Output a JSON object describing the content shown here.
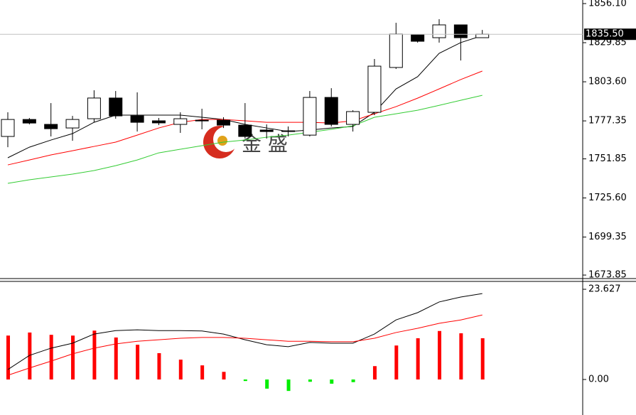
{
  "chart_data": [
    {
      "type": "candlestick",
      "watermark": "金 盛",
      "last_price": 1835.5,
      "last_price_label": "1835.50",
      "last_price_color": "#c0c0c0",
      "up_color": "#ffffff",
      "down_color": "#000000",
      "ylim": [
        1671.5,
        1858.5
      ],
      "yticks": [
        {
          "value": 1856.1,
          "label": "1856.10"
        },
        {
          "value": 1829.85,
          "label": "1829.85"
        },
        {
          "value": 1803.6,
          "label": "1803.60"
        },
        1777.35,
        {
          "value": 1751.85,
          "label": "1751.85"
        },
        {
          "value": 1725.6,
          "label": "1725.60"
        },
        1699.35,
        1673.85
      ],
      "open": [
        1766.9,
        1778.3,
        1775.0,
        1772.6,
        1778.8,
        1792.7,
        1780.7,
        1777.4,
        1775.0,
        1777.8,
        1777.8,
        1774.5,
        1771.2,
        1770.2,
        1767.8,
        1793.1,
        1775.0,
        1783.1,
        1813.2,
        1835.1,
        1833.2,
        1841.8,
        1833.2
      ],
      "high": [
        1783.1,
        1779.3,
        1789.3,
        1780.7,
        1797.9,
        1797.4,
        1796.5,
        1779.3,
        1783.1,
        1785.5,
        1779.8,
        1789.3,
        1775.0,
        1773.6,
        1797.4,
        1799.3,
        1784.5,
        1818.9,
        1843.2,
        1835.6,
        1845.6,
        1841.8,
        1838.4
      ],
      "low": [
        1759.7,
        1775.0,
        1766.9,
        1764.0,
        1776.4,
        1778.8,
        1770.2,
        1774.5,
        1769.3,
        1771.7,
        1772.6,
        1765.5,
        1765.5,
        1766.9,
        1766.9,
        1773.6,
        1770.2,
        1781.2,
        1812.2,
        1829.9,
        1829.9,
        1817.9,
        1833.2
      ],
      "close": [
        1778.3,
        1775.9,
        1772.1,
        1778.3,
        1792.7,
        1780.7,
        1776.4,
        1776.0,
        1778.8,
        1777.4,
        1774.5,
        1766.9,
        1770.2,
        1770.7,
        1793.1,
        1775.0,
        1783.6,
        1814.1,
        1835.6,
        1830.8,
        1841.8,
        1833.2,
        1835.5
      ],
      "series": [
        {
          "color": "#000000",
          "values": [
            1752.6,
            1759.7,
            1764.5,
            1768.8,
            1776.4,
            1781.2,
            1781.2,
            1781.2,
            1781.2,
            1779.8,
            1778.3,
            1775.0,
            1772.6,
            1770.2,
            1771.2,
            1772.6,
            1773.6,
            1783.1,
            1798.8,
            1807.0,
            1822.7,
            1829.9,
            1834.6
          ]
        },
        {
          "color": "#ff0000",
          "values": [
            1747.8,
            1751.1,
            1754.5,
            1757.3,
            1760.2,
            1763.1,
            1767.8,
            1772.6,
            1776.4,
            1778.3,
            1778.3,
            1777.4,
            1776.4,
            1776.4,
            1776.4,
            1775.9,
            1777.4,
            1782.1,
            1786.9,
            1792.6,
            1798.8,
            1805.1,
            1810.8
          ]
        },
        {
          "color": "#33cc33",
          "values": [
            1735.4,
            1737.8,
            1739.7,
            1741.6,
            1744.0,
            1747.3,
            1751.1,
            1755.9,
            1758.3,
            1760.7,
            1763.1,
            1764.5,
            1766.4,
            1767.8,
            1769.7,
            1771.7,
            1774.0,
            1779.8,
            1782.1,
            1784.5,
            1787.8,
            1791.2,
            1794.5
          ]
        }
      ]
    },
    {
      "type": "macd",
      "ylim": [
        -9.3,
        25.5
      ],
      "yticks": [
        23.627,
        {
          "value": 0,
          "label": "0.00"
        }
      ],
      "positive_color": "#ff0000",
      "negative_color": "#00ee00",
      "values": [
        11.5,
        12.3,
        11.7,
        11.5,
        12.8,
        11.0,
        9.1,
        6.9,
        5.2,
        3.7,
        2.0,
        -0.4,
        -2.4,
        -3.0,
        -0.6,
        -1.1,
        -0.7,
        3.5,
        8.9,
        10.8,
        12.7,
        12.1,
        10.8
      ],
      "series": [
        {
          "color": "#000000",
          "values": [
            2.6,
            6.3,
            8.2,
            9.5,
            11.9,
            12.8,
            13.0,
            12.8,
            12.8,
            12.7,
            11.9,
            10.4,
            9.1,
            8.6,
            9.7,
            9.5,
            9.5,
            11.9,
            15.6,
            17.5,
            20.3,
            21.6,
            22.5
          ]
        },
        {
          "color": "#ff0000",
          "values": [
            1.1,
            3.0,
            4.8,
            6.7,
            8.2,
            9.3,
            10.0,
            10.4,
            10.8,
            11.0,
            11.0,
            10.8,
            10.4,
            10.0,
            10.0,
            9.9,
            9.9,
            10.8,
            12.3,
            13.4,
            14.7,
            15.6,
            16.9
          ]
        }
      ]
    }
  ]
}
